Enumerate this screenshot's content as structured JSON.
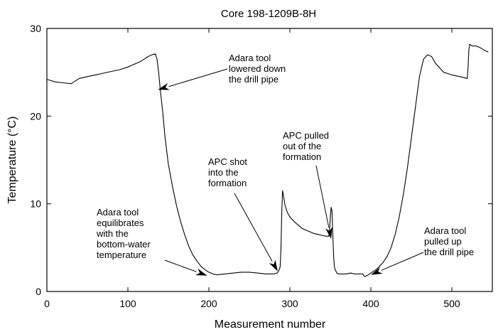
{
  "chart_data": {
    "type": "line",
    "title": "Core 198-1209B-8H",
    "xlabel": "Measurement number",
    "ylabel": "Temperature (°C)",
    "xlim": [
      0,
      550
    ],
    "ylim": [
      0,
      30
    ],
    "xticks": [
      0,
      100,
      200,
      300,
      400,
      500
    ],
    "yticks": [
      0,
      10,
      20,
      30
    ],
    "grid": false,
    "series": [
      {
        "x": [
          0,
          10,
          20,
          30,
          40,
          50,
          60,
          70,
          80,
          90,
          100,
          105,
          110,
          115,
          120,
          125,
          130,
          134,
          136,
          138,
          140,
          143,
          146,
          150,
          155,
          160,
          165,
          170,
          175,
          180,
          185,
          190,
          195,
          200,
          205,
          210,
          220,
          230,
          240,
          250,
          260,
          270,
          280,
          284,
          286,
          288,
          289,
          290,
          291,
          292,
          294,
          297,
          300,
          305,
          310,
          315,
          320,
          325,
          330,
          335,
          340,
          345,
          348,
          349,
          350,
          351,
          352,
          353,
          354,
          355,
          356,
          357,
          358,
          360,
          365,
          370,
          375,
          380,
          385,
          390,
          392,
          395,
          400,
          405,
          410,
          415,
          420,
          425,
          430,
          435,
          440,
          445,
          450,
          455,
          460,
          465,
          470,
          475,
          480,
          485,
          490,
          500,
          510,
          519,
          520,
          521,
          522,
          525,
          530,
          535,
          540,
          545
        ],
        "y": [
          24.2,
          23.9,
          23.8,
          23.7,
          24.3,
          24.5,
          24.7,
          24.9,
          25.1,
          25.3,
          25.6,
          25.8,
          26.0,
          26.2,
          26.5,
          26.8,
          27.0,
          27.1,
          26.5,
          25.0,
          23.0,
          20.5,
          17.5,
          14.5,
          12.0,
          9.8,
          8.0,
          6.5,
          5.2,
          4.2,
          3.5,
          2.9,
          2.5,
          2.2,
          2.0,
          1.9,
          2.0,
          2.1,
          2.2,
          2.2,
          2.1,
          2.0,
          2.0,
          2.1,
          2.3,
          2.8,
          5.0,
          9.0,
          11.5,
          11.0,
          9.8,
          9.0,
          8.5,
          8.0,
          7.6,
          7.2,
          7.0,
          6.8,
          6.6,
          6.5,
          6.4,
          6.3,
          6.3,
          7.0,
          8.5,
          9.6,
          9.2,
          6.5,
          4.0,
          2.8,
          2.5,
          2.3,
          2.1,
          2.0,
          2.0,
          2.0,
          2.1,
          2.0,
          2.0,
          2.0,
          1.7,
          1.8,
          2.1,
          2.4,
          2.8,
          3.3,
          4.0,
          5.0,
          6.5,
          8.5,
          11.0,
          14.0,
          17.5,
          21.0,
          24.5,
          26.5,
          27.0,
          26.8,
          26.0,
          25.5,
          25.0,
          24.7,
          24.5,
          24.3,
          25.5,
          27.5,
          28.2,
          28.0,
          28.0,
          27.8,
          27.5,
          27.3
        ]
      }
    ],
    "annotations": [
      {
        "lines": [
          "Adara tool",
          "lowered down",
          "the drill pipe"
        ],
        "arrow_to": [
          137,
          23.0
        ]
      },
      {
        "lines": [
          "Adara tool",
          "equilibrates",
          "with the",
          "bottom-water",
          "temperature"
        ],
        "arrow_to": [
          198,
          1.8
        ]
      },
      {
        "lines": [
          "APC shot",
          "into the",
          "formation"
        ],
        "arrow_to": [
          285,
          2.3
        ]
      },
      {
        "lines": [
          "APC pulled",
          "out of the",
          "formation"
        ],
        "arrow_to": [
          351,
          6.0
        ]
      },
      {
        "lines": [
          "Adara tool",
          "pulled up",
          "the drill pipe"
        ],
        "arrow_to": [
          400,
          1.9
        ]
      }
    ]
  }
}
